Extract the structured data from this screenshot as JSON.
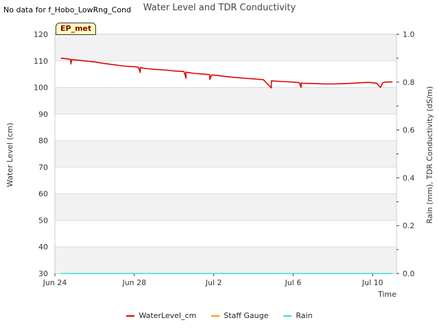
{
  "header": {
    "nodata_text": "No data for f_Hobo_LowRng_Cond",
    "title": "Water Level and TDR Conductivity",
    "badge": "EP_met"
  },
  "chart_data": {
    "type": "line",
    "title": "Water Level and TDR Conductivity",
    "xlabel": "Time",
    "ylabel": "Water Level (cm)",
    "ylabel_right": "Rain (mm), TDR Conductivity (dS/m)",
    "xlim": [
      0,
      17.2
    ],
    "ylim": [
      30,
      120
    ],
    "ylim_right": [
      0.0,
      1.0
    ],
    "x_ticks": [
      {
        "value": 0,
        "label": "Jun 24"
      },
      {
        "value": 4,
        "label": "Jun 28"
      },
      {
        "value": 8,
        "label": "Jul 2"
      },
      {
        "value": 12,
        "label": "Jul 6"
      },
      {
        "value": 16,
        "label": "Jul 10"
      }
    ],
    "y_ticks": [
      30,
      40,
      50,
      60,
      70,
      80,
      90,
      100,
      110,
      120
    ],
    "y_right_ticks": [
      "0.0",
      "0.2",
      "0.4",
      "0.6",
      "0.8",
      "1.0"
    ],
    "y_right_values": [
      0.0,
      0.2,
      0.4,
      0.6,
      0.8,
      1.0
    ],
    "series": [
      {
        "name": "WaterLevel_cm",
        "color": "#dd0000",
        "axis": "left",
        "x": [
          0.3,
          0.6,
          0.8,
          0.8,
          0.85,
          1.1,
          1.5,
          2.0,
          2.5,
          3.0,
          3.5,
          4.0,
          4.2,
          4.3,
          4.3,
          4.4,
          4.6,
          5.0,
          5.5,
          6.0,
          6.5,
          6.6,
          6.6,
          6.7,
          7.0,
          7.5,
          7.8,
          7.8,
          7.9,
          8.2,
          8.5,
          9.0,
          9.5,
          10.0,
          10.5,
          10.9,
          10.9,
          11.0,
          11.5,
          12.0,
          12.3,
          12.4,
          12.4,
          12.5,
          12.8,
          13.2,
          13.6,
          14.0,
          14.5,
          15.0,
          15.5,
          15.8,
          16.2,
          16.4,
          16.5,
          16.6,
          17.0
        ],
        "values": [
          111.0,
          110.8,
          110.5,
          108.8,
          110.4,
          110.3,
          110.0,
          109.6,
          109.0,
          108.5,
          108.0,
          107.8,
          107.6,
          105.6,
          107.5,
          107.3,
          107.1,
          106.8,
          106.6,
          106.2,
          106.0,
          103.5,
          105.8,
          105.6,
          105.3,
          105.0,
          104.8,
          103.0,
          104.7,
          104.5,
          104.2,
          103.8,
          103.5,
          103.2,
          102.9,
          99.8,
          102.5,
          102.4,
          102.2,
          102.0,
          101.8,
          100.0,
          101.7,
          101.6,
          101.5,
          101.4,
          101.3,
          101.3,
          101.4,
          101.6,
          101.8,
          101.9,
          101.6,
          100.0,
          101.7,
          102.0,
          102.1
        ]
      },
      {
        "name": "Staff Gauge",
        "color": "#ff9900",
        "axis": "left",
        "x": [],
        "values": []
      },
      {
        "name": "Rain",
        "color": "#33dddd",
        "axis": "right",
        "x": [
          0.3,
          17.0
        ],
        "values": [
          0.0,
          0.0
        ]
      }
    ]
  }
}
